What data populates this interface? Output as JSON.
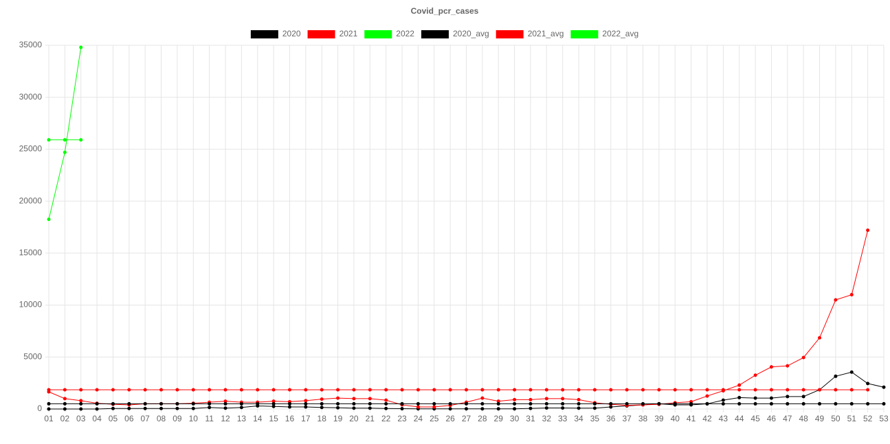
{
  "chart_data": {
    "type": "line",
    "title": "Covid_pcr_cases",
    "categories": [
      "01",
      "02",
      "03",
      "04",
      "05",
      "06",
      "07",
      "08",
      "09",
      "10",
      "11",
      "12",
      "13",
      "14",
      "15",
      "16",
      "17",
      "18",
      "19",
      "20",
      "21",
      "22",
      "23",
      "24",
      "25",
      "26",
      "27",
      "28",
      "29",
      "30",
      "31",
      "32",
      "33",
      "34",
      "35",
      "36",
      "37",
      "38",
      "39",
      "40",
      "41",
      "42",
      "43",
      "44",
      "45",
      "46",
      "47",
      "48",
      "49",
      "50",
      "51",
      "52",
      "53"
    ],
    "series": [
      {
        "name": "2020",
        "color": "#000000",
        "values": [
          0,
          0,
          0,
          0,
          50,
          50,
          50,
          50,
          50,
          50,
          150,
          80,
          150,
          300,
          250,
          200,
          200,
          150,
          120,
          80,
          80,
          50,
          30,
          20,
          20,
          20,
          20,
          20,
          20,
          20,
          60,
          100,
          100,
          80,
          80,
          200,
          300,
          400,
          500,
          400,
          400,
          500,
          850,
          1100,
          1050,
          1050,
          1200,
          1200,
          1850,
          3150,
          3550,
          2450,
          2100
        ]
      },
      {
        "name": "2021",
        "color": "#ff0000",
        "values": [
          1650,
          1000,
          800,
          550,
          450,
          400,
          500,
          500,
          500,
          550,
          650,
          750,
          650,
          650,
          750,
          700,
          800,
          950,
          1050,
          1000,
          1000,
          850,
          400,
          200,
          200,
          350,
          650,
          1050,
          750,
          900,
          900,
          1000,
          1000,
          900,
          600,
          450,
          350,
          400,
          450,
          600,
          700,
          1250,
          1750,
          2300,
          3250,
          4050,
          4150,
          4950,
          6850,
          10500,
          11000,
          17200,
          null
        ]
      },
      {
        "name": "2022",
        "color": "#00ff00",
        "values": [
          18250,
          24700,
          34800,
          null,
          null,
          null,
          null,
          null,
          null,
          null,
          null,
          null,
          null,
          null,
          null,
          null,
          null,
          null,
          null,
          null,
          null,
          null,
          null,
          null,
          null,
          null,
          null,
          null,
          null,
          null,
          null,
          null,
          null,
          null,
          null,
          null,
          null,
          null,
          null,
          null,
          null,
          null,
          null,
          null,
          null,
          null,
          null,
          null,
          null,
          null,
          null,
          null,
          null
        ]
      },
      {
        "name": "2020_avg",
        "color": "#000000",
        "values": [
          500,
          500,
          500,
          500,
          500,
          500,
          500,
          500,
          500,
          500,
          500,
          500,
          500,
          500,
          500,
          500,
          500,
          500,
          500,
          500,
          500,
          500,
          500,
          500,
          500,
          500,
          500,
          500,
          500,
          500,
          500,
          500,
          500,
          500,
          500,
          500,
          500,
          500,
          500,
          500,
          500,
          500,
          500,
          500,
          500,
          500,
          500,
          500,
          500,
          500,
          500,
          500,
          500
        ]
      },
      {
        "name": "2021_avg",
        "color": "#ff0000",
        "values": [
          1850,
          1850,
          1850,
          1850,
          1850,
          1850,
          1850,
          1850,
          1850,
          1850,
          1850,
          1850,
          1850,
          1850,
          1850,
          1850,
          1850,
          1850,
          1850,
          1850,
          1850,
          1850,
          1850,
          1850,
          1850,
          1850,
          1850,
          1850,
          1850,
          1850,
          1850,
          1850,
          1850,
          1850,
          1850,
          1850,
          1850,
          1850,
          1850,
          1850,
          1850,
          1850,
          1850,
          1850,
          1850,
          1850,
          1850,
          1850,
          1850,
          1850,
          1850,
          1850,
          null
        ]
      },
      {
        "name": "2022_avg",
        "color": "#00ff00",
        "values": [
          25900,
          25900,
          25900,
          null,
          null,
          null,
          null,
          null,
          null,
          null,
          null,
          null,
          null,
          null,
          null,
          null,
          null,
          null,
          null,
          null,
          null,
          null,
          null,
          null,
          null,
          null,
          null,
          null,
          null,
          null,
          null,
          null,
          null,
          null,
          null,
          null,
          null,
          null,
          null,
          null,
          null,
          null,
          null,
          null,
          null,
          null,
          null,
          null,
          null,
          null,
          null,
          null,
          null
        ]
      }
    ],
    "ylim": [
      0,
      35000
    ],
    "yticks": [
      0,
      5000,
      10000,
      15000,
      20000,
      25000,
      30000,
      35000
    ],
    "grid": true
  }
}
